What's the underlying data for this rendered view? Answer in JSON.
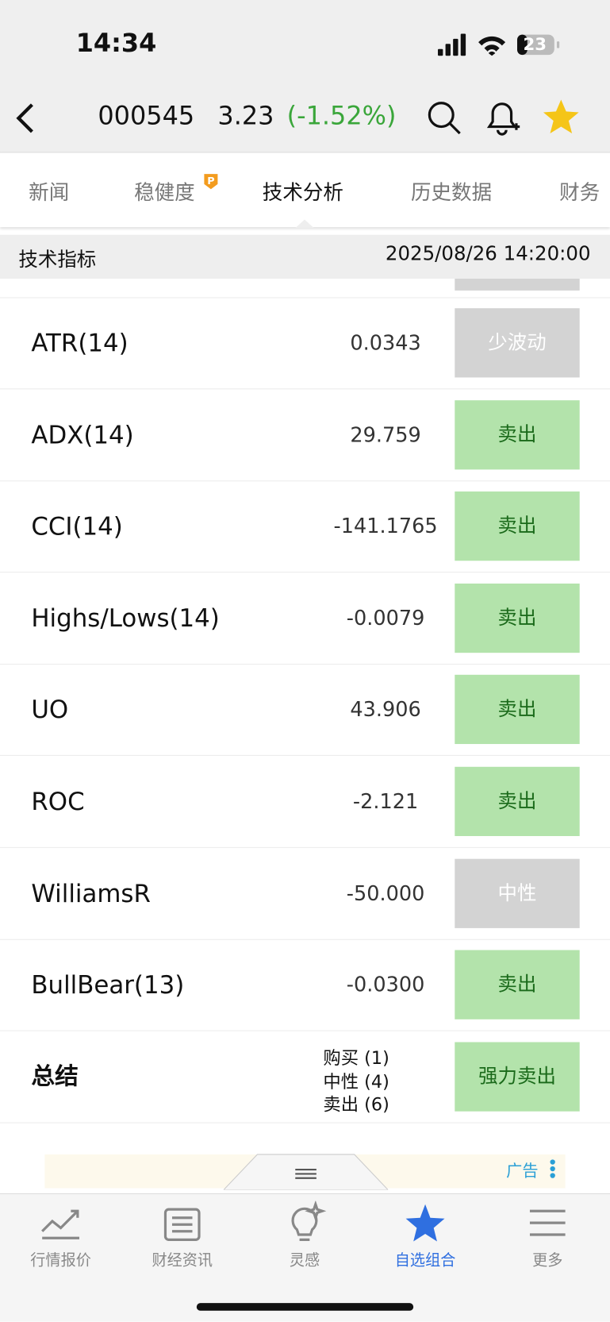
{
  "status": {
    "time": "14:34",
    "battery": "23"
  },
  "header": {
    "code": "000545",
    "price": "3.23",
    "change": "(-1.52%)"
  },
  "tabs": [
    "新闻",
    "稳健度",
    "技术分析",
    "历史数据",
    "财务"
  ],
  "section": {
    "title": "技术指标",
    "timestamp": "2025/08/26 14:20:00"
  },
  "table": {
    "rows": [
      [
        "ATR(14)",
        "0.0343",
        "少波动"
      ],
      [
        "ADX(14)",
        "29.759",
        "卖出"
      ],
      [
        "CCI(14)",
        "-141.1765",
        "卖出"
      ],
      [
        "Highs/Lows(14)",
        "-0.0079",
        "卖出"
      ],
      [
        "UO",
        "43.906",
        "卖出"
      ],
      [
        "ROC",
        "-2.121",
        "卖出"
      ],
      [
        "WilliamsR",
        "-50.000",
        "中性"
      ],
      [
        "BullBear(13)",
        "-0.0300",
        "卖出"
      ]
    ],
    "summary": {
      "label": "总结",
      "counts": [
        "购买 (1)",
        "中性 (4)",
        "卖出 (6)"
      ],
      "signal": "强力卖出"
    }
  },
  "ad": {
    "label": "广告"
  },
  "nav": [
    "行情报价",
    "财经资讯",
    "灵感",
    "自选组合",
    "更多"
  ]
}
